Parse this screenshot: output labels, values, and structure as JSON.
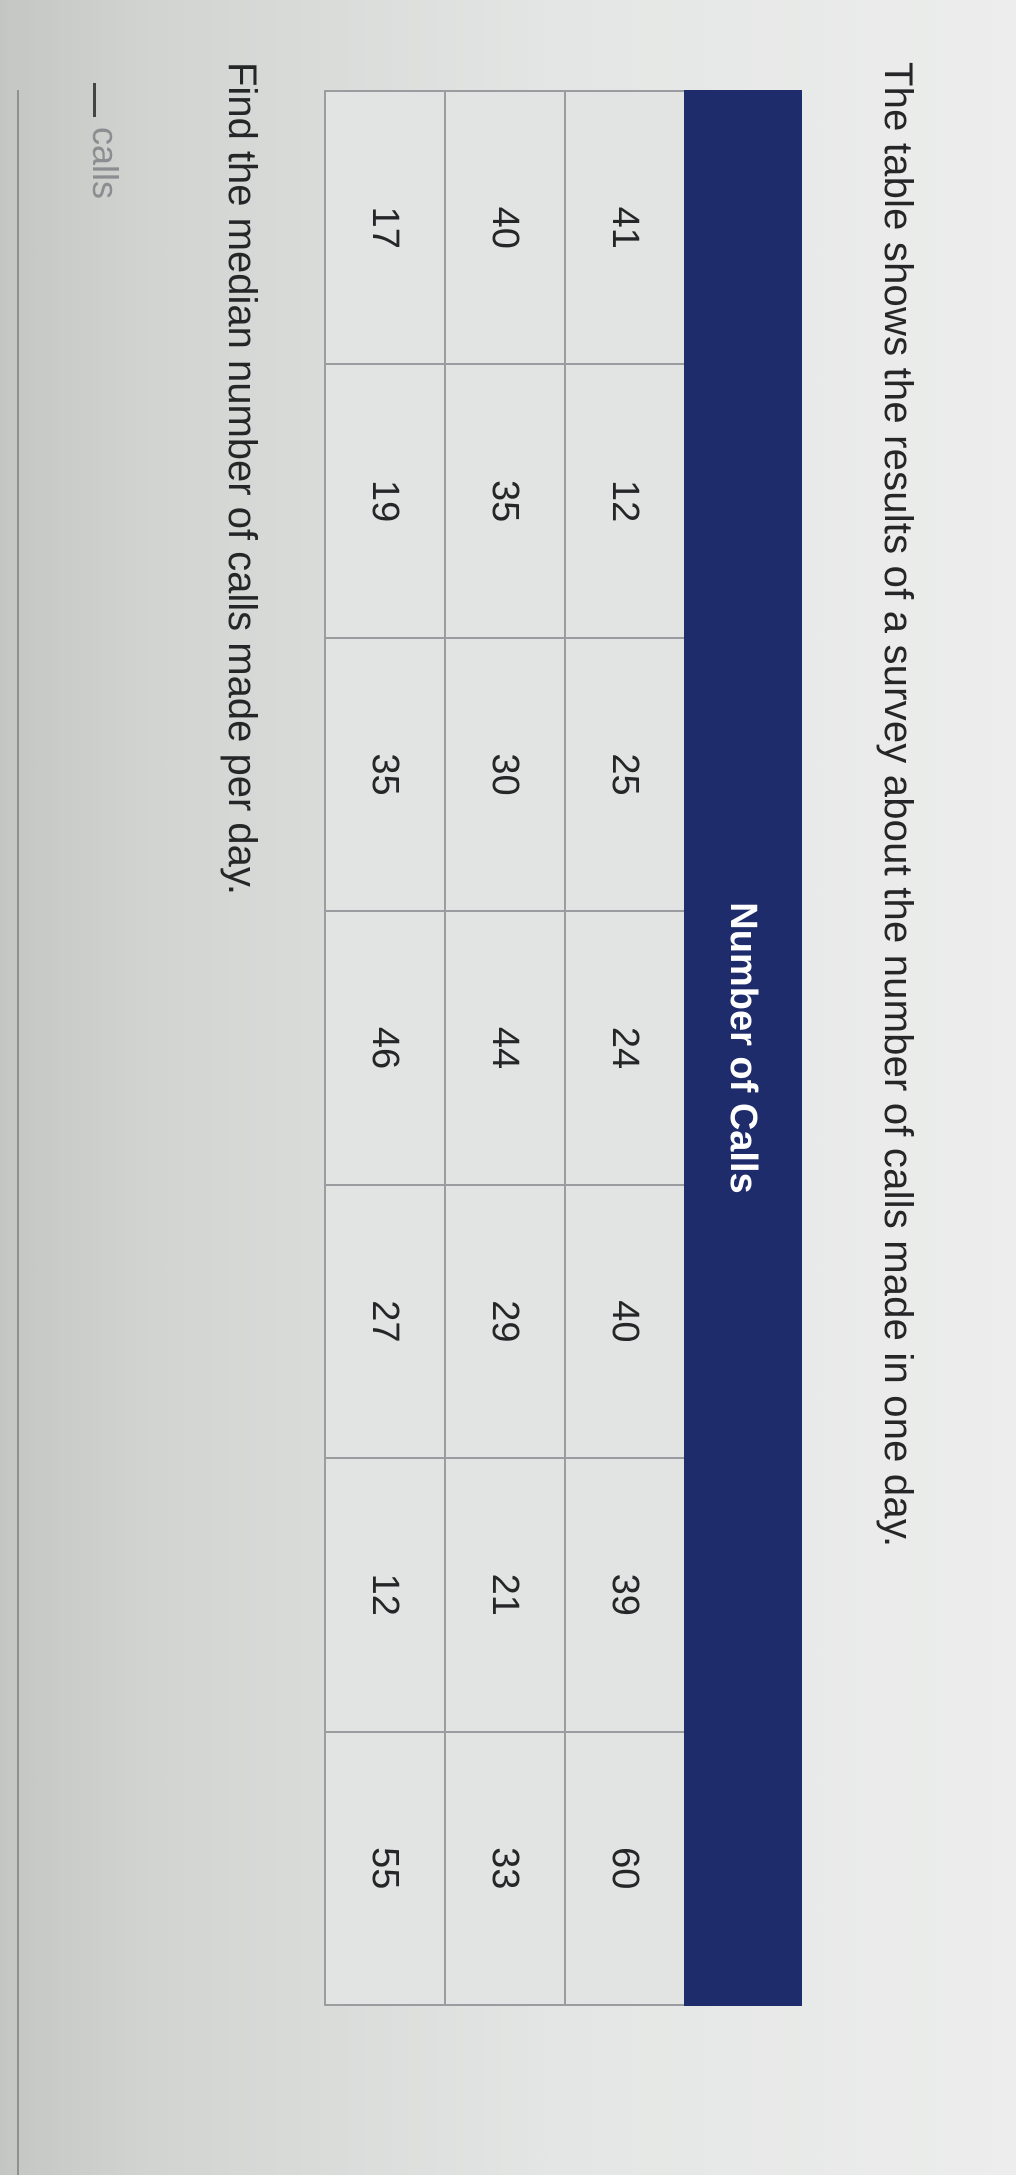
{
  "question": "The table shows the results of a survey about the number of calls made in one day.",
  "table": {
    "header": "Number of Calls",
    "header_color": "#1f2c6c",
    "rows": [
      [
        "41",
        "12",
        "25",
        "24",
        "40",
        "39",
        "60"
      ],
      [
        "40",
        "35",
        "30",
        "44",
        "29",
        "21",
        "33"
      ],
      [
        "17",
        "19",
        "35",
        "46",
        "27",
        "12",
        "55"
      ]
    ]
  },
  "prompt": "Find the median number of calls made per day.",
  "answer": {
    "value": "",
    "unit": "calls"
  }
}
